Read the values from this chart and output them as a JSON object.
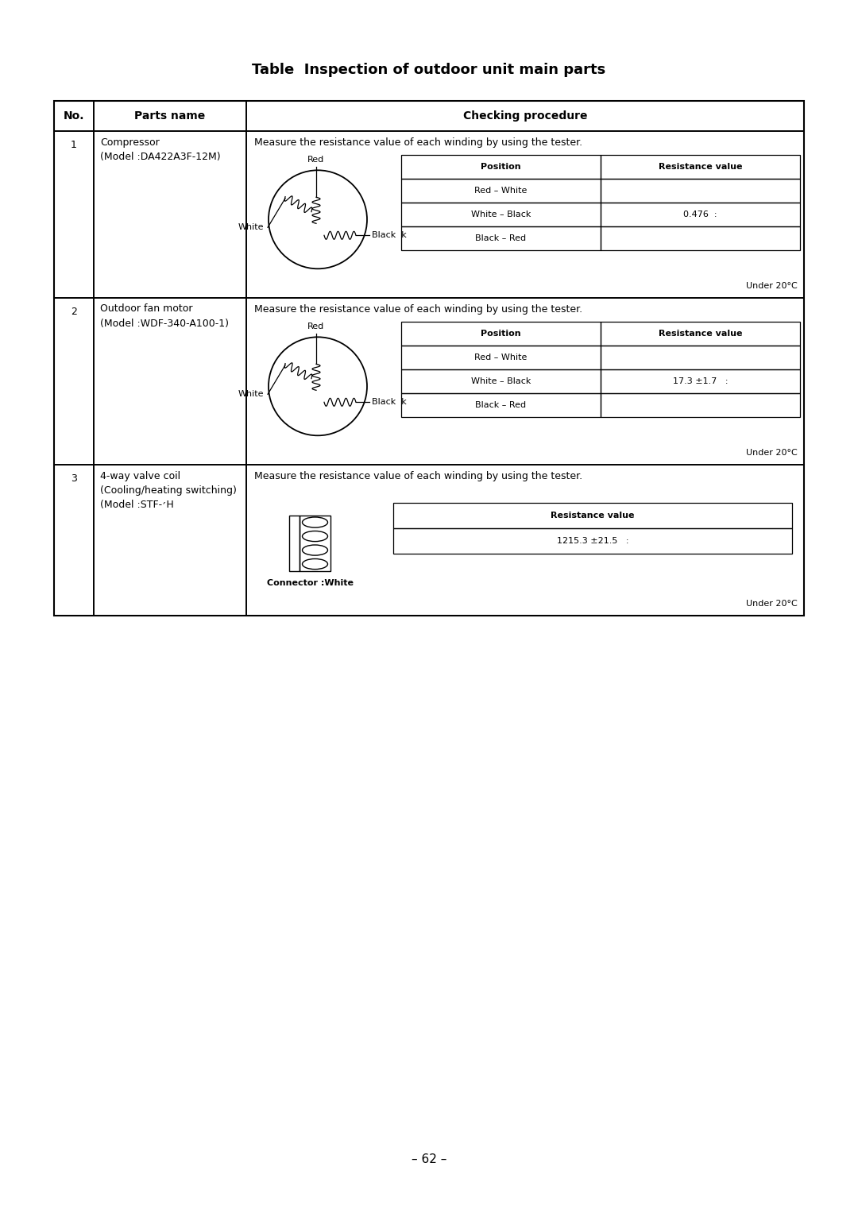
{
  "title": "Table  Inspection of outdoor unit main parts",
  "page_number": "– 62 –",
  "background_color": "#ffffff",
  "header_cols": [
    "No.",
    "Parts name",
    "Checking procedure"
  ],
  "rows": [
    {
      "no": "1",
      "parts_name": [
        "Compressor",
        "(Model :DA422A3F-12M)"
      ],
      "procedure_text": "Measure the resistance value of each winding by using the tester.",
      "inner_table_headers": [
        "Position",
        "Resistance value"
      ],
      "inner_table_rows": [
        [
          "Red – White",
          ""
        ],
        [
          "White – Black",
          "0.476  :"
        ],
        [
          "Black – Red",
          ""
        ]
      ],
      "note": "Under 20°C",
      "diagram_type": "motor_circle",
      "label_top": "Red",
      "label_left": "White",
      "label_right": "Black  k"
    },
    {
      "no": "2",
      "parts_name": [
        "Outdoor fan motor",
        "(Model :WDF-340-A100-1)"
      ],
      "procedure_text": "Measure the resistance value of each winding by using the tester.",
      "inner_table_headers": [
        "Position",
        "Resistance value"
      ],
      "inner_table_rows": [
        [
          "Red – White",
          ""
        ],
        [
          "White – Black",
          "17.3 ±1.7   :"
        ],
        [
          "Black – Red",
          ""
        ]
      ],
      "note": "Under 20°C",
      "diagram_type": "motor_circle",
      "label_top": "Red",
      "label_left": "White",
      "label_right": "Black  k"
    },
    {
      "no": "3",
      "parts_name": [
        "4-way valve coil",
        "(Cooling/heating switching)",
        "(Model :STF-׳H"
      ],
      "procedure_text": "Measure the resistance value of each winding by using the tester.",
      "inner_table_headers": [
        "Resistance value"
      ],
      "inner_table_rows": [
        [
          "1215.3 ±21.5   :"
        ]
      ],
      "note": "Under 20°C",
      "diagram_type": "coil_connector",
      "label_bottom": "Connector :White"
    }
  ],
  "font_size_title": 13,
  "font_size_header": 10,
  "font_size_body": 9,
  "font_size_small": 8
}
